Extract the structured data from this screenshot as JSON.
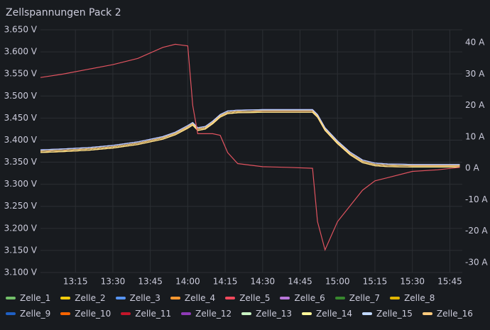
{
  "chart_data": {
    "type": "line",
    "title": "Zellspannungen Pack 2",
    "x": [
      "13:01",
      "13:10",
      "13:20",
      "13:30",
      "13:40",
      "13:50",
      "13:55",
      "14:00",
      "14:02",
      "14:04",
      "14:07",
      "14:10",
      "14:13",
      "14:16",
      "14:20",
      "14:30",
      "14:40",
      "14:50",
      "14:52",
      "14:55",
      "15:00",
      "15:05",
      "15:10",
      "15:15",
      "15:20",
      "15:30",
      "15:40",
      "15:49"
    ],
    "xlim": [
      "13:01",
      "15:50"
    ],
    "xticks": [
      "13:15",
      "13:30",
      "13:45",
      "14:00",
      "14:15",
      "14:30",
      "14:45",
      "15:00",
      "15:15",
      "15:30",
      "15:45"
    ],
    "ylim": [
      3.1,
      3.65
    ],
    "yticks": [
      {
        "value": 3.1,
        "label": "3.100 V"
      },
      {
        "value": 3.15,
        "label": "3.150 V"
      },
      {
        "value": 3.2,
        "label": "3.200 V"
      },
      {
        "value": 3.25,
        "label": "3.250 V"
      },
      {
        "value": 3.3,
        "label": "3.300 V"
      },
      {
        "value": 3.35,
        "label": "3.350 V"
      },
      {
        "value": 3.4,
        "label": "3.400 V"
      },
      {
        "value": 3.45,
        "label": "3.450 V"
      },
      {
        "value": 3.5,
        "label": "3.500 V"
      },
      {
        "value": 3.55,
        "label": "3.550 V"
      },
      {
        "value": 3.6,
        "label": "3.600 V"
      },
      {
        "value": 3.65,
        "label": "3.650 V"
      }
    ],
    "y2lim": [
      -33.2,
      44.1
    ],
    "y2ticks": [
      {
        "value": -30,
        "label": "-30 A"
      },
      {
        "value": -20,
        "label": "-20 A"
      },
      {
        "value": -10,
        "label": "-10 A"
      },
      {
        "value": 0,
        "label": "0 A"
      },
      {
        "value": 10,
        "label": "10 A"
      },
      {
        "value": 20,
        "label": "20 A"
      },
      {
        "value": 30,
        "label": "30 A"
      },
      {
        "value": 40,
        "label": "40 A"
      }
    ],
    "grid": true,
    "legend": "bottom",
    "series": [
      {
        "name": "Zelle_1",
        "color": "#73bf69",
        "values": [
          3.375,
          3.377,
          3.38,
          3.385,
          3.393,
          3.405,
          3.415,
          3.43,
          3.437,
          3.425,
          3.428,
          3.44,
          3.455,
          3.463,
          3.465,
          3.466,
          3.466,
          3.466,
          3.455,
          3.425,
          3.395,
          3.37,
          3.352,
          3.345,
          3.343,
          3.342,
          3.342,
          3.342
        ]
      },
      {
        "name": "Zelle_2",
        "color": "#f2cc0c",
        "values": [
          3.372,
          3.374,
          3.377,
          3.382,
          3.39,
          3.402,
          3.412,
          3.427,
          3.434,
          3.422,
          3.425,
          3.437,
          3.452,
          3.46,
          3.462,
          3.463,
          3.463,
          3.463,
          3.452,
          3.422,
          3.392,
          3.367,
          3.349,
          3.342,
          3.34,
          3.339,
          3.339,
          3.339
        ]
      },
      {
        "name": "Zelle_3",
        "color": "#5794f2",
        "values": [
          3.378,
          3.38,
          3.383,
          3.388,
          3.396,
          3.408,
          3.418,
          3.433,
          3.44,
          3.428,
          3.431,
          3.443,
          3.458,
          3.466,
          3.468,
          3.469,
          3.469,
          3.469,
          3.458,
          3.428,
          3.398,
          3.373,
          3.355,
          3.348,
          3.346,
          3.345,
          3.345,
          3.345
        ]
      },
      {
        "name": "Zelle_4",
        "color": "#ff9830",
        "values": [
          3.375,
          3.377,
          3.38,
          3.385,
          3.393,
          3.405,
          3.415,
          3.43,
          3.437,
          3.425,
          3.428,
          3.44,
          3.455,
          3.463,
          3.465,
          3.466,
          3.466,
          3.466,
          3.455,
          3.425,
          3.395,
          3.37,
          3.352,
          3.345,
          3.343,
          3.342,
          3.342,
          3.342
        ]
      },
      {
        "name": "Zelle_5",
        "color": "#f2495c",
        "values": [
          3.372,
          3.374,
          3.377,
          3.382,
          3.39,
          3.402,
          3.412,
          3.427,
          3.434,
          3.422,
          3.425,
          3.437,
          3.452,
          3.46,
          3.462,
          3.463,
          3.463,
          3.463,
          3.452,
          3.422,
          3.392,
          3.367,
          3.349,
          3.342,
          3.34,
          3.339,
          3.339,
          3.339
        ]
      },
      {
        "name": "Zelle_6",
        "color": "#b877d9",
        "values": [
          3.378,
          3.38,
          3.383,
          3.388,
          3.396,
          3.408,
          3.418,
          3.433,
          3.44,
          3.428,
          3.431,
          3.443,
          3.458,
          3.466,
          3.468,
          3.469,
          3.469,
          3.469,
          3.458,
          3.428,
          3.398,
          3.373,
          3.355,
          3.348,
          3.346,
          3.345,
          3.345,
          3.345
        ]
      },
      {
        "name": "Zelle_7",
        "color": "#37872d",
        "values": [
          3.375,
          3.377,
          3.38,
          3.385,
          3.393,
          3.405,
          3.415,
          3.43,
          3.437,
          3.425,
          3.428,
          3.44,
          3.455,
          3.463,
          3.465,
          3.466,
          3.466,
          3.466,
          3.455,
          3.425,
          3.395,
          3.37,
          3.352,
          3.345,
          3.343,
          3.342,
          3.342,
          3.342
        ]
      },
      {
        "name": "Zelle_8",
        "color": "#e0b400",
        "values": [
          3.372,
          3.374,
          3.377,
          3.382,
          3.39,
          3.402,
          3.412,
          3.427,
          3.434,
          3.422,
          3.425,
          3.437,
          3.452,
          3.46,
          3.462,
          3.463,
          3.463,
          3.463,
          3.452,
          3.422,
          3.392,
          3.367,
          3.349,
          3.342,
          3.34,
          3.339,
          3.339,
          3.339
        ]
      },
      {
        "name": "Zelle_9",
        "color": "#1f60c4",
        "values": [
          3.378,
          3.38,
          3.383,
          3.388,
          3.396,
          3.408,
          3.418,
          3.433,
          3.44,
          3.428,
          3.431,
          3.443,
          3.458,
          3.466,
          3.468,
          3.469,
          3.469,
          3.469,
          3.458,
          3.428,
          3.398,
          3.373,
          3.355,
          3.348,
          3.346,
          3.345,
          3.345,
          3.345
        ]
      },
      {
        "name": "Zelle_10",
        "color": "#fa6400",
        "values": [
          3.375,
          3.377,
          3.38,
          3.385,
          3.393,
          3.405,
          3.415,
          3.43,
          3.437,
          3.425,
          3.428,
          3.44,
          3.455,
          3.463,
          3.465,
          3.466,
          3.466,
          3.466,
          3.455,
          3.425,
          3.395,
          3.37,
          3.352,
          3.345,
          3.343,
          3.342,
          3.342,
          3.342
        ]
      },
      {
        "name": "Zelle_11",
        "color": "#c4162a",
        "values": [
          3.372,
          3.374,
          3.377,
          3.382,
          3.39,
          3.402,
          3.412,
          3.427,
          3.434,
          3.422,
          3.425,
          3.437,
          3.452,
          3.46,
          3.462,
          3.463,
          3.463,
          3.463,
          3.452,
          3.422,
          3.392,
          3.367,
          3.349,
          3.342,
          3.34,
          3.339,
          3.339,
          3.339
        ]
      },
      {
        "name": "Zelle_12",
        "color": "#8f3bb8",
        "values": [
          3.378,
          3.38,
          3.383,
          3.388,
          3.396,
          3.408,
          3.418,
          3.433,
          3.44,
          3.428,
          3.431,
          3.443,
          3.458,
          3.466,
          3.468,
          3.469,
          3.469,
          3.469,
          3.458,
          3.428,
          3.398,
          3.373,
          3.355,
          3.348,
          3.346,
          3.345,
          3.345,
          3.345
        ]
      },
      {
        "name": "Zelle_13",
        "color": "#c8f2c2",
        "values": [
          3.375,
          3.377,
          3.38,
          3.385,
          3.393,
          3.405,
          3.415,
          3.43,
          3.437,
          3.425,
          3.428,
          3.44,
          3.455,
          3.463,
          3.465,
          3.466,
          3.466,
          3.466,
          3.455,
          3.425,
          3.395,
          3.37,
          3.352,
          3.345,
          3.343,
          3.342,
          3.342,
          3.342
        ]
      },
      {
        "name": "Zelle_14",
        "color": "#fff899",
        "values": [
          3.372,
          3.374,
          3.377,
          3.382,
          3.39,
          3.402,
          3.412,
          3.427,
          3.434,
          3.422,
          3.425,
          3.437,
          3.452,
          3.46,
          3.462,
          3.463,
          3.463,
          3.463,
          3.452,
          3.422,
          3.392,
          3.367,
          3.349,
          3.342,
          3.34,
          3.339,
          3.339,
          3.339
        ]
      },
      {
        "name": "Zelle_15",
        "color": "#c0d8ff",
        "values": [
          3.378,
          3.38,
          3.383,
          3.388,
          3.396,
          3.408,
          3.418,
          3.433,
          3.44,
          3.428,
          3.431,
          3.443,
          3.458,
          3.466,
          3.468,
          3.469,
          3.469,
          3.469,
          3.458,
          3.428,
          3.398,
          3.373,
          3.355,
          3.348,
          3.346,
          3.345,
          3.345,
          3.345
        ]
      },
      {
        "name": "Zelle_16",
        "color": "#ffcb7d",
        "values": [
          3.375,
          3.377,
          3.38,
          3.385,
          3.393,
          3.405,
          3.415,
          3.43,
          3.437,
          3.425,
          3.428,
          3.44,
          3.455,
          3.463,
          3.465,
          3.466,
          3.466,
          3.466,
          3.455,
          3.425,
          3.395,
          3.37,
          3.352,
          3.345,
          3.343,
          3.342,
          3.342,
          3.342
        ]
      },
      {
        "color": "#e0535f",
        "axis": "y2",
        "values": [
          28.9,
          30,
          31.5,
          33,
          35,
          38.5,
          39.5,
          39,
          20,
          11,
          11,
          11,
          10.5,
          5,
          1.5,
          0.5,
          0.3,
          0,
          -17,
          -26,
          -17,
          -12,
          -7,
          -4,
          -3,
          -1,
          -0.5,
          0.3
        ]
      }
    ]
  }
}
